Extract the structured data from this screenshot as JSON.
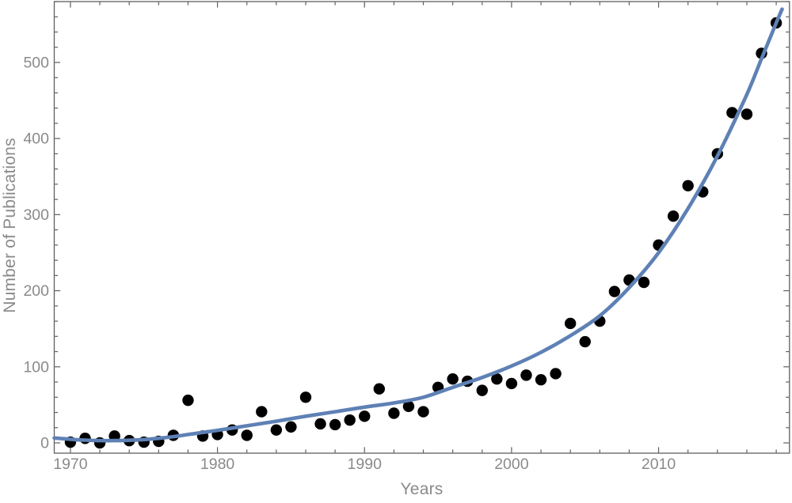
{
  "chart_data": {
    "type": "scatter",
    "title": "",
    "xlabel": "Years",
    "ylabel": "Number of Publications",
    "xlim": [
      1968.9,
      2018.9
    ],
    "ylim": [
      -13.5,
      580
    ],
    "x_major_ticks": [
      1970,
      1980,
      1990,
      2000,
      2010
    ],
    "x_minor_tick_step": 2,
    "y_major_ticks": [
      0,
      100,
      200,
      300,
      400,
      500
    ],
    "y_minor_tick_step": 20,
    "grid": false,
    "legend": false,
    "frame": true,
    "colors": {
      "frame": "#5f5f5f",
      "tick_labels": "#8a8a8a",
      "points": "#000000",
      "trend": "#5e81b5",
      "background": "#ffffff"
    },
    "series": [
      {
        "name": "publications-per-year",
        "type": "scatter",
        "color": "#000000",
        "marker_radius": 7.2,
        "x": [
          1970,
          1971,
          1972,
          1973,
          1974,
          1975,
          1976,
          1977,
          1978,
          1979,
          1980,
          1981,
          1982,
          1983,
          1984,
          1985,
          1986,
          1987,
          1988,
          1989,
          1990,
          1991,
          1992,
          1993,
          1994,
          1995,
          1996,
          1997,
          1998,
          1999,
          2000,
          2001,
          2002,
          2003,
          2004,
          2005,
          2006,
          2007,
          2008,
          2009,
          2010,
          2011,
          2012,
          2013,
          2014,
          2015,
          2016,
          2017,
          2018
        ],
        "y": [
          1,
          6,
          0,
          9,
          3,
          1,
          2,
          10,
          56,
          9,
          11,
          17,
          10,
          41,
          17,
          21,
          60,
          25,
          24,
          30,
          35,
          71,
          39,
          48,
          41,
          73,
          84,
          81,
          69,
          84,
          78,
          89,
          83,
          91,
          157,
          133,
          160,
          199,
          214,
          211,
          260,
          298,
          338,
          330,
          380,
          434,
          432,
          512,
          552
        ]
      },
      {
        "name": "fitted-trend-curve",
        "type": "line",
        "color": "#5e81b5",
        "stroke_width": 4.6,
        "x": [
          1968.9,
          1970,
          1971,
          1972,
          1973,
          1974,
          1975,
          1976,
          1977,
          1978,
          1980,
          1982,
          1984,
          1986,
          1988,
          1990,
          1992,
          1994,
          1996,
          1998,
          2000,
          2002,
          2004,
          2006,
          2008,
          2010,
          2012,
          2014,
          2016,
          2017,
          2018,
          2018.4
        ],
        "y": [
          6.5,
          4.8,
          3.6,
          3.0,
          3.0,
          3.4,
          4.4,
          6,
          8.2,
          11,
          16.5,
          22.5,
          28.5,
          35,
          41,
          47,
          52.5,
          60,
          73,
          86,
          101,
          119,
          141,
          167,
          204,
          250,
          308,
          377,
          458,
          505,
          552,
          570
        ]
      }
    ]
  }
}
